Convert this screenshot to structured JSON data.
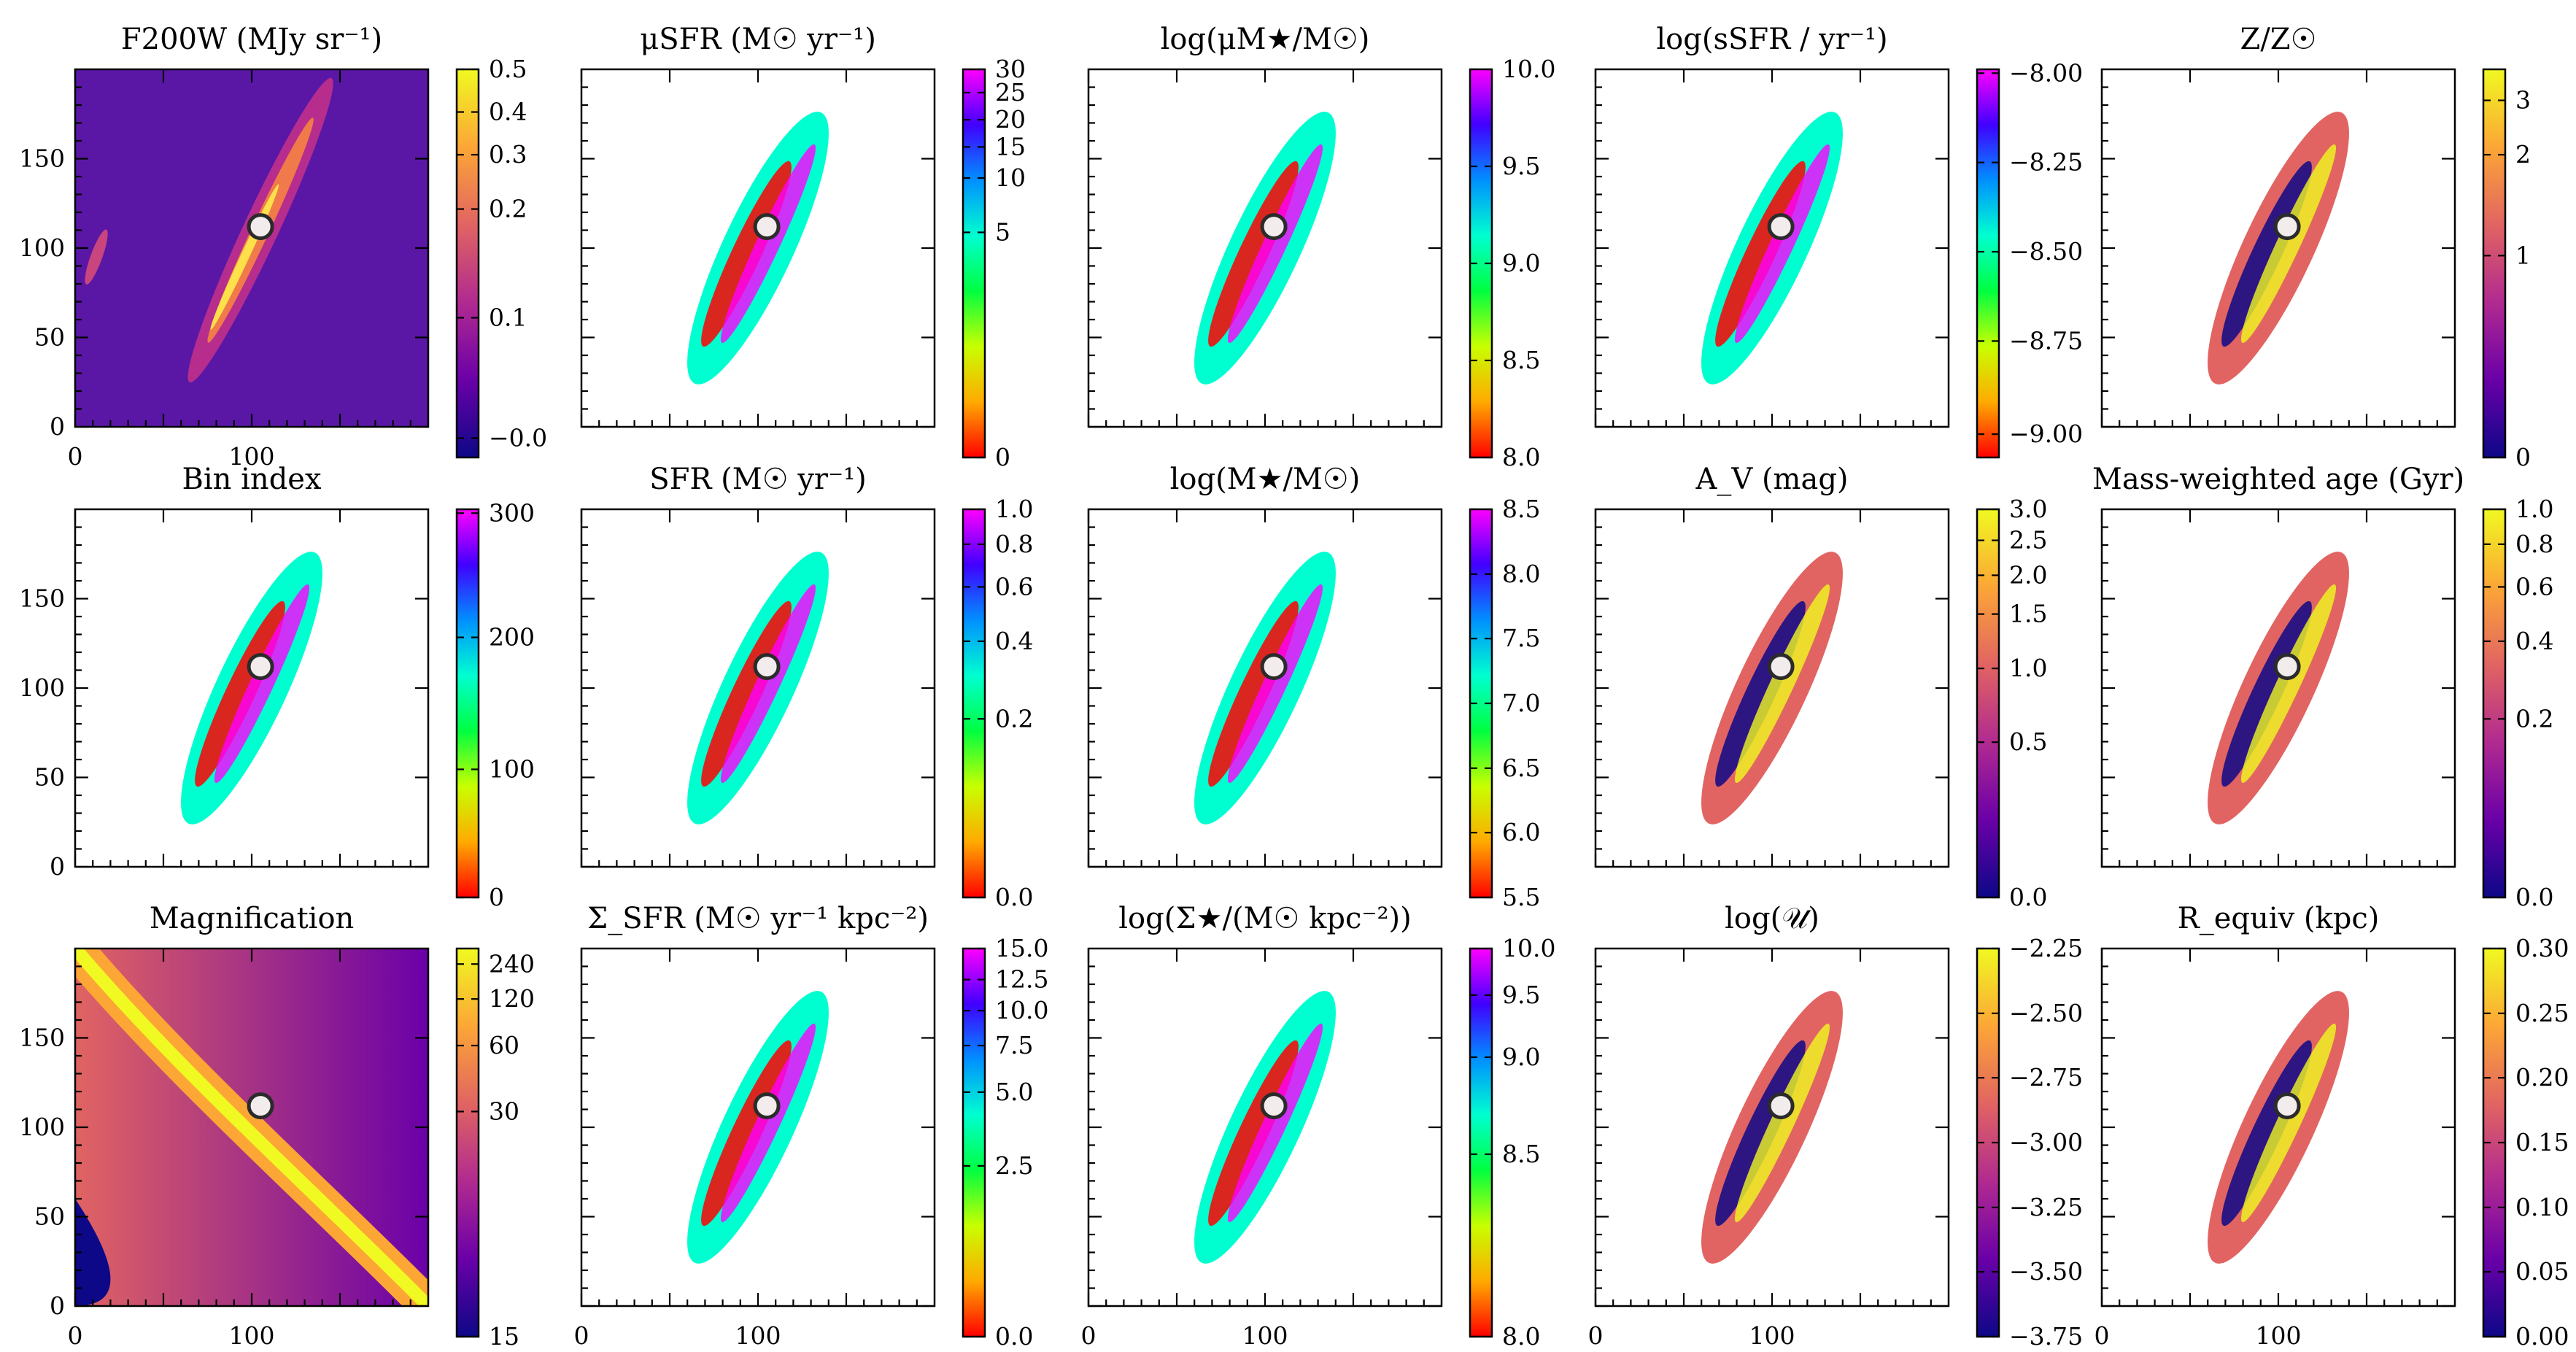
{
  "chart_data": [
    {
      "type": "heatmap",
      "title": "F200W (MJy sr⁻¹)",
      "colormap": "plasma",
      "background": "image",
      "xlim": [
        0,
        200
      ],
      "ylim": [
        0,
        200
      ],
      "yticks": [
        0,
        50,
        100,
        150
      ],
      "xticks": [
        0,
        100
      ],
      "colorbar": {
        "ticks": [
          "-0.0",
          "0.1",
          "0.2",
          "0.3",
          "0.4",
          "0.5"
        ],
        "positions": [
          0.05,
          0.36,
          0.64,
          0.78,
          0.89,
          1.0
        ],
        "stops": [
          "#0d0887",
          "#6a00a8",
          "#b12a90",
          "#e16462",
          "#fca636",
          "#f0f921"
        ]
      },
      "marker": {
        "x": 105,
        "y": 112
      }
    },
    {
      "type": "heatmap",
      "title": "μSFR (M☉ yr⁻¹)",
      "colormap": "gist_rainbow_r",
      "xlim": [
        0,
        200
      ],
      "ylim": [
        0,
        200
      ],
      "colorbar": {
        "ticks": [
          "0",
          "5",
          "10",
          "15",
          "20",
          "25",
          "30"
        ],
        "positions": [
          0,
          0.58,
          0.72,
          0.8,
          0.87,
          0.94,
          1.0
        ],
        "stops": [
          "#ff0000",
          "#ffaa00",
          "#c8ff00",
          "#00ff40",
          "#00ffd0",
          "#0090ff",
          "#4000ff",
          "#ff00ff"
        ]
      },
      "marker": {
        "x": 105,
        "y": 112
      }
    },
    {
      "type": "heatmap",
      "title": "log(μM★/M☉)",
      "colormap": "gist_rainbow_r",
      "xlim": [
        0,
        200
      ],
      "ylim": [
        0,
        200
      ],
      "colorbar": {
        "ticks": [
          "8.0",
          "8.5",
          "9.0",
          "9.5",
          "10.0"
        ],
        "positions": [
          0,
          0.25,
          0.5,
          0.75,
          1.0
        ],
        "stops": [
          "#ff0000",
          "#ffaa00",
          "#c8ff00",
          "#00ff40",
          "#00ffd0",
          "#0090ff",
          "#4000ff",
          "#ff00ff"
        ]
      },
      "marker": {
        "x": 105,
        "y": 112
      }
    },
    {
      "type": "heatmap",
      "title": "log(sSFR / yr⁻¹)",
      "colormap": "gist_rainbow_r",
      "xlim": [
        0,
        200
      ],
      "ylim": [
        0,
        200
      ],
      "colorbar": {
        "ticks": [
          "-9.00",
          "-8.75",
          "-8.50",
          "-8.25",
          "-8.00"
        ],
        "positions": [
          0.06,
          0.3,
          0.53,
          0.76,
          0.99
        ],
        "stops": [
          "#ff0000",
          "#ffaa00",
          "#c8ff00",
          "#00ff40",
          "#00ffd0",
          "#0090ff",
          "#4000ff",
          "#ff00ff"
        ]
      },
      "marker": {
        "x": 105,
        "y": 112
      }
    },
    {
      "type": "heatmap",
      "title": "Z/Z☉",
      "colormap": "plasma",
      "xlim": [
        0,
        200
      ],
      "ylim": [
        0,
        200
      ],
      "colorbar": {
        "ticks": [
          "0",
          "1",
          "2",
          "3"
        ],
        "positions": [
          0,
          0.52,
          0.78,
          0.92
        ],
        "stops": [
          "#0d0887",
          "#6a00a8",
          "#b12a90",
          "#e16462",
          "#fca636",
          "#f0f921"
        ]
      },
      "marker": {
        "x": 105,
        "y": 112
      }
    },
    {
      "type": "heatmap",
      "title": "Bin index",
      "colormap": "gist_rainbow_r",
      "xlim": [
        0,
        200
      ],
      "ylim": [
        0,
        200
      ],
      "yticks": [
        0,
        50,
        100,
        150
      ],
      "colorbar": {
        "ticks": [
          "0",
          "100",
          "200",
          "300"
        ],
        "positions": [
          0,
          0.33,
          0.67,
          0.99
        ],
        "stops": [
          "#ff0000",
          "#ffaa00",
          "#c8ff00",
          "#00ff40",
          "#00ffd0",
          "#0090ff",
          "#4000ff",
          "#ff00ff"
        ]
      },
      "marker": {
        "x": 105,
        "y": 112
      }
    },
    {
      "type": "heatmap",
      "title": "SFR (M☉ yr⁻¹)",
      "colormap": "gist_rainbow_r",
      "xlim": [
        0,
        200
      ],
      "ylim": [
        0,
        200
      ],
      "colorbar": {
        "ticks": [
          "0.0",
          "0.2",
          "0.4",
          "0.6",
          "0.8",
          "1.0"
        ],
        "positions": [
          0,
          0.46,
          0.66,
          0.8,
          0.91,
          1.0
        ],
        "stops": [
          "#ff0000",
          "#ffaa00",
          "#c8ff00",
          "#00ff40",
          "#00ffd0",
          "#0090ff",
          "#4000ff",
          "#ff00ff"
        ]
      },
      "marker": {
        "x": 105,
        "y": 112
      }
    },
    {
      "type": "heatmap",
      "title": "log(M★/M☉)",
      "colormap": "gist_rainbow_r",
      "xlim": [
        0,
        200
      ],
      "ylim": [
        0,
        200
      ],
      "colorbar": {
        "ticks": [
          "5.5",
          "6.0",
          "6.5",
          "7.0",
          "7.5",
          "8.0",
          "8.5"
        ],
        "positions": [
          0,
          0.167,
          0.333,
          0.5,
          0.667,
          0.833,
          1.0
        ],
        "stops": [
          "#ff0000",
          "#ffaa00",
          "#c8ff00",
          "#00ff40",
          "#00ffd0",
          "#0090ff",
          "#4000ff",
          "#ff00ff"
        ]
      },
      "marker": {
        "x": 105,
        "y": 112
      }
    },
    {
      "type": "heatmap",
      "title": "A_V (mag)",
      "colormap": "plasma",
      "xlim": [
        0,
        200
      ],
      "ylim": [
        0,
        200
      ],
      "colorbar": {
        "ticks": [
          "0.0",
          "0.5",
          "1.0",
          "1.5",
          "2.0",
          "2.5",
          "3.0"
        ],
        "positions": [
          0,
          0.4,
          0.59,
          0.73,
          0.83,
          0.92,
          1.0
        ],
        "stops": [
          "#0d0887",
          "#6a00a8",
          "#b12a90",
          "#e16462",
          "#fca636",
          "#f0f921"
        ]
      },
      "marker": {
        "x": 105,
        "y": 112
      }
    },
    {
      "type": "heatmap",
      "title": "Mass-weighted age (Gyr)",
      "colormap": "plasma",
      "xlim": [
        0,
        200
      ],
      "ylim": [
        0,
        200
      ],
      "colorbar": {
        "ticks": [
          "0.0",
          "0.2",
          "0.4",
          "0.6",
          "0.8",
          "1.0"
        ],
        "positions": [
          0,
          0.46,
          0.66,
          0.8,
          0.91,
          1.0
        ],
        "stops": [
          "#0d0887",
          "#6a00a8",
          "#b12a90",
          "#e16462",
          "#fca636",
          "#f0f921"
        ]
      },
      "marker": {
        "x": 105,
        "y": 112
      }
    },
    {
      "type": "heatmap",
      "title": "Magnification",
      "colormap": "plasma",
      "background": "gradient",
      "xlim": [
        0,
        200
      ],
      "ylim": [
        0,
        200
      ],
      "yticks": [
        0,
        50,
        100,
        150
      ],
      "xticks": [
        0,
        100
      ],
      "colorbar": {
        "ticks": [
          "15",
          "30",
          "60",
          "120",
          "240"
        ],
        "positions": [
          0,
          0.58,
          0.75,
          0.87,
          0.96
        ],
        "stops": [
          "#0d0887",
          "#6a00a8",
          "#b12a90",
          "#e16462",
          "#fca636",
          "#f0f921"
        ]
      },
      "marker": {
        "x": 105,
        "y": 112
      }
    },
    {
      "type": "heatmap",
      "title": "Σ_SFR (M☉ yr⁻¹ kpc⁻²)",
      "colormap": "gist_rainbow_r",
      "xticks": [
        0,
        100
      ],
      "xlim": [
        0,
        200
      ],
      "ylim": [
        0,
        200
      ],
      "colorbar": {
        "ticks": [
          "0.0",
          "2.5",
          "5.0",
          "7.5",
          "10.0",
          "12.5",
          "15.0"
        ],
        "positions": [
          0,
          0.44,
          0.63,
          0.75,
          0.84,
          0.92,
          1.0
        ],
        "stops": [
          "#ff0000",
          "#ffaa00",
          "#c8ff00",
          "#00ff40",
          "#00ffd0",
          "#0090ff",
          "#4000ff",
          "#ff00ff"
        ]
      },
      "marker": {
        "x": 105,
        "y": 112
      }
    },
    {
      "type": "heatmap",
      "title": "log(Σ★/(M☉ kpc⁻²))",
      "colormap": "gist_rainbow_r",
      "xticks": [
        0,
        100
      ],
      "xlim": [
        0,
        200
      ],
      "ylim": [
        0,
        200
      ],
      "colorbar": {
        "ticks": [
          "8.0",
          "8.5",
          "9.0",
          "9.5",
          "10.0"
        ],
        "positions": [
          0,
          0.47,
          0.72,
          0.88,
          1.0
        ],
        "stops": [
          "#ff0000",
          "#ffaa00",
          "#c8ff00",
          "#00ff40",
          "#00ffd0",
          "#0090ff",
          "#4000ff",
          "#ff00ff"
        ]
      },
      "marker": {
        "x": 105,
        "y": 112
      }
    },
    {
      "type": "heatmap",
      "title": "log(𝒰)",
      "colormap": "plasma",
      "xticks": [
        0,
        100
      ],
      "xlim": [
        0,
        200
      ],
      "ylim": [
        0,
        200
      ],
      "colorbar": {
        "ticks": [
          "-3.75",
          "-3.50",
          "-3.25",
          "-3.00",
          "-2.75",
          "-2.50",
          "-2.25"
        ],
        "positions": [
          0,
          0.167,
          0.333,
          0.5,
          0.667,
          0.833,
          1.0
        ],
        "stops": [
          "#0d0887",
          "#6a00a8",
          "#b12a90",
          "#e16462",
          "#fca636",
          "#f0f921"
        ]
      },
      "marker": {
        "x": 105,
        "y": 112
      }
    },
    {
      "type": "heatmap",
      "title": "R_equiv (kpc)",
      "colormap": "plasma",
      "xticks": [
        0,
        100
      ],
      "xlim": [
        0,
        200
      ],
      "ylim": [
        0,
        200
      ],
      "colorbar": {
        "ticks": [
          "0.00",
          "0.05",
          "0.10",
          "0.15",
          "0.20",
          "0.25",
          "0.30"
        ],
        "positions": [
          0,
          0.167,
          0.333,
          0.5,
          0.667,
          0.833,
          1.0
        ],
        "stops": [
          "#0d0887",
          "#6a00a8",
          "#b12a90",
          "#e16462",
          "#fca636",
          "#f0f921"
        ]
      },
      "marker": {
        "x": 105,
        "y": 112
      }
    }
  ]
}
